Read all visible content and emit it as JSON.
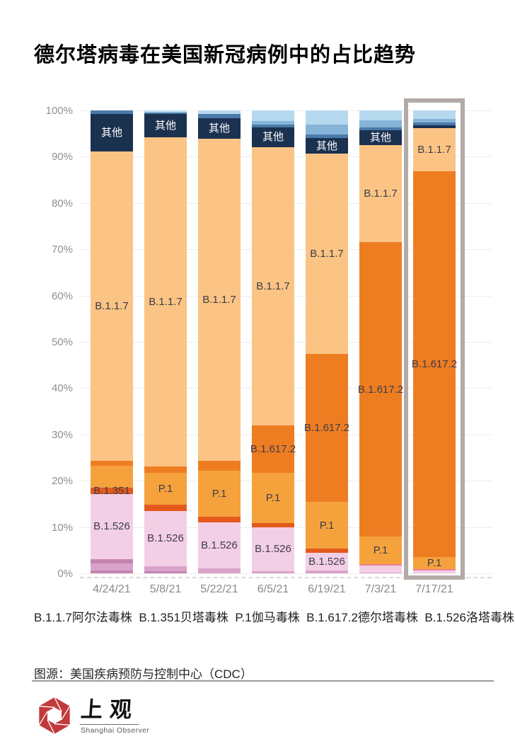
{
  "title": "德尔塔病毒在美国新冠病例中的占比趋势",
  "chart_data": {
    "type": "bar",
    "stacked": true,
    "unit": "percent",
    "ylim": [
      0,
      100
    ],
    "grid": true,
    "yticks": [
      "100%",
      "90%",
      "80%",
      "70%",
      "60%",
      "50%",
      "40%",
      "30%",
      "20%",
      "10%",
      "0%"
    ],
    "categories": [
      "4/24/21",
      "5/8/21",
      "5/22/21",
      "6/5/21",
      "6/19/21",
      "7/3/21",
      "7/17/21"
    ],
    "highlighted_category": "7/17/21",
    "colors": {
      "B.1.526": "#f3cfe6",
      "B.1.351": "#e4591d",
      "P.1": "#f5a23d",
      "B.1.617.2": "#ee7d22",
      "B.1.1.7": "#fbc484",
      "其他": "#1b3150",
      "misc_pink_dark": "#c285b1",
      "misc_pink_med": "#d9a3ca",
      "misc_red_light": "#ed7e97",
      "blue_dark": "#4a7aa8",
      "blue_med": "#86b4d9",
      "blue_light": "#b7d9ef",
      "highlight_frame": "#b3aaa7"
    },
    "bars": [
      {
        "category": "4/24/21",
        "segments": [
          {
            "name": "misc",
            "value": 0.6,
            "color": "#c285b1"
          },
          {
            "name": "misc",
            "value": 1.6,
            "color": "#d9a3ca"
          },
          {
            "name": "misc",
            "value": 0.9,
            "color": "#c285b1"
          },
          {
            "name": "B.1.526",
            "value": 14.0,
            "color": "#f3cfe6",
            "label": "B.1.526"
          },
          {
            "name": "B.1.351",
            "value": 1.4,
            "color": "#e4591d",
            "label": "B.1.351"
          },
          {
            "name": "P.1",
            "value": 4.7,
            "color": "#f5a23d"
          },
          {
            "name": "B.1.617.2",
            "value": 1.1,
            "color": "#ee7d22"
          },
          {
            "name": "B.1.1.7",
            "value": 66.9,
            "color": "#fbc484",
            "label": "B.1.1.7"
          },
          {
            "name": "其他",
            "value": 8.1,
            "color": "#1b3150",
            "label": "其他",
            "label_white": true
          },
          {
            "name": "blue_dark",
            "value": 0.7,
            "color": "#4a7aa8"
          }
        ]
      },
      {
        "category": "5/8/21",
        "segments": [
          {
            "name": "misc",
            "value": 0.4,
            "color": "#c285b1"
          },
          {
            "name": "misc",
            "value": 1.1,
            "color": "#d9a3ca"
          },
          {
            "name": "B.1.526",
            "value": 12.0,
            "color": "#f3cfe6",
            "label": "B.1.526"
          },
          {
            "name": "B.1.351",
            "value": 1.3,
            "color": "#e4591d"
          },
          {
            "name": "P.1",
            "value": 6.9,
            "color": "#f5a23d",
            "label": "P.1"
          },
          {
            "name": "B.1.617.2",
            "value": 1.4,
            "color": "#ee7d22"
          },
          {
            "name": "B.1.1.7",
            "value": 71.1,
            "color": "#fbc484",
            "label": "B.1.1.7"
          },
          {
            "name": "其他",
            "value": 5.0,
            "color": "#1b3150",
            "label": "其他",
            "label_white": true
          },
          {
            "name": "blue_dark",
            "value": 0.4,
            "color": "#4a7aa8"
          },
          {
            "name": "blue_light",
            "value": 0.4,
            "color": "#b7d9ef"
          }
        ]
      },
      {
        "category": "5/22/21",
        "segments": [
          {
            "name": "misc",
            "value": 1.0,
            "color": "#d9a3ca"
          },
          {
            "name": "B.1.526",
            "value": 10.0,
            "color": "#f3cfe6",
            "label": "B.1.526"
          },
          {
            "name": "B.1.351",
            "value": 1.2,
            "color": "#e4591d"
          },
          {
            "name": "P.1",
            "value": 10.0,
            "color": "#f5a23d",
            "label": "P.1"
          },
          {
            "name": "B.1.617.2",
            "value": 2.1,
            "color": "#ee7d22"
          },
          {
            "name": "B.1.1.7",
            "value": 69.6,
            "color": "#fbc484",
            "label": "B.1.1.7"
          },
          {
            "name": "其他",
            "value": 4.5,
            "color": "#1b3150",
            "label": "其他",
            "label_white": true
          },
          {
            "name": "blue_dark",
            "value": 0.8,
            "color": "#4a7aa8"
          },
          {
            "name": "blue_light",
            "value": 0.8,
            "color": "#b7d9ef"
          }
        ]
      },
      {
        "category": "6/5/21",
        "segments": [
          {
            "name": "misc",
            "value": 0.5,
            "color": "#d9a3ca"
          },
          {
            "name": "B.1.526",
            "value": 9.5,
            "color": "#f3cfe6",
            "label": "B.1.526"
          },
          {
            "name": "B.1.351",
            "value": 0.8,
            "color": "#e4591d"
          },
          {
            "name": "P.1",
            "value": 10.9,
            "color": "#f5a23d",
            "label": "P.1"
          },
          {
            "name": "B.1.617.2",
            "value": 10.3,
            "color": "#ee7d22",
            "label": "B.1.617.2"
          },
          {
            "name": "B.1.1.7",
            "value": 60.0,
            "color": "#fbc484",
            "label": "B.1.1.7"
          },
          {
            "name": "其他",
            "value": 4.4,
            "color": "#1b3150",
            "label": "其他",
            "label_white": true
          },
          {
            "name": "blue_dark",
            "value": 0.6,
            "color": "#4a7aa8"
          },
          {
            "name": "blue_med",
            "value": 0.7,
            "color": "#86b4d9"
          },
          {
            "name": "blue_light",
            "value": 2.3,
            "color": "#b7d9ef"
          }
        ]
      },
      {
        "category": "6/19/21",
        "segments": [
          {
            "name": "misc",
            "value": 0.6,
            "color": "#d9a3ca"
          },
          {
            "name": "B.1.526",
            "value": 3.8,
            "color": "#f3cfe6",
            "label": "B.1.526"
          },
          {
            "name": "B.1.351",
            "value": 0.9,
            "color": "#e4591d"
          },
          {
            "name": "P.1",
            "value": 10.2,
            "color": "#f5a23d",
            "label": "P.1"
          },
          {
            "name": "B.1.617.2",
            "value": 31.9,
            "color": "#ee7d22",
            "label": "B.1.617.2"
          },
          {
            "name": "B.1.1.7",
            "value": 43.3,
            "color": "#fbc484",
            "label": "B.1.1.7"
          },
          {
            "name": "其他",
            "value": 3.3,
            "color": "#1b3150",
            "label": "其他",
            "label_white": true
          },
          {
            "name": "blue_dark",
            "value": 0.8,
            "color": "#4a7aa8"
          },
          {
            "name": "blue_med",
            "value": 2.1,
            "color": "#86b4d9"
          },
          {
            "name": "blue_light",
            "value": 3.1,
            "color": "#b7d9ef"
          }
        ]
      },
      {
        "category": "7/3/21",
        "segments": [
          {
            "name": "misc",
            "value": 0.2,
            "color": "#d9a3ca"
          },
          {
            "name": "B.1.526",
            "value": 1.5,
            "color": "#f3cfe6"
          },
          {
            "name": "B.1.351",
            "value": 0.3,
            "color": "#ed7e97"
          },
          {
            "name": "P.1",
            "value": 5.9,
            "color": "#f5a23d",
            "label": "P.1"
          },
          {
            "name": "B.1.617.2",
            "value": 63.7,
            "color": "#ee7d22",
            "label": "B.1.617.2"
          },
          {
            "name": "B.1.1.7",
            "value": 20.9,
            "color": "#fbc484",
            "label": "B.1.1.7"
          },
          {
            "name": "其他",
            "value": 3.2,
            "color": "#1b3150",
            "label": "其他",
            "label_white": true
          },
          {
            "name": "blue_dark",
            "value": 0.6,
            "color": "#4a7aa8"
          },
          {
            "name": "blue_med",
            "value": 1.6,
            "color": "#86b4d9"
          },
          {
            "name": "blue_light",
            "value": 2.1,
            "color": "#b7d9ef"
          }
        ]
      },
      {
        "category": "7/17/21",
        "segments": [
          {
            "name": "B.1.526",
            "value": 0.6,
            "color": "#f3cfe6"
          },
          {
            "name": "B.1.351",
            "value": 0.3,
            "color": "#ed7e97"
          },
          {
            "name": "P.1",
            "value": 2.6,
            "color": "#f5a23d",
            "label": "P.1"
          },
          {
            "name": "B.1.617.2",
            "value": 83.4,
            "color": "#ee7d22",
            "label": "B.1.617.2"
          },
          {
            "name": "B.1.1.7",
            "value": 9.3,
            "color": "#fbc484",
            "label": "B.1.1.7"
          },
          {
            "name": "其他",
            "value": 0.6,
            "color": "#1b3150"
          },
          {
            "name": "blue_dark",
            "value": 0.6,
            "color": "#4a7aa8"
          },
          {
            "name": "blue_med",
            "value": 0.8,
            "color": "#86b4d9"
          },
          {
            "name": "blue_light",
            "value": 1.8,
            "color": "#b7d9ef"
          }
        ]
      }
    ]
  },
  "legend_note": "B.1.1.7阿尔法毒株  B.1.351贝塔毒株  P.1伽马毒株  B.1.617.2德尔塔毒株  B.1.526洛塔毒株",
  "source": "图源：美国疾病预防与控制中心（CDC）",
  "logo": {
    "cn": "上观",
    "en": "Shanghai Observer"
  }
}
